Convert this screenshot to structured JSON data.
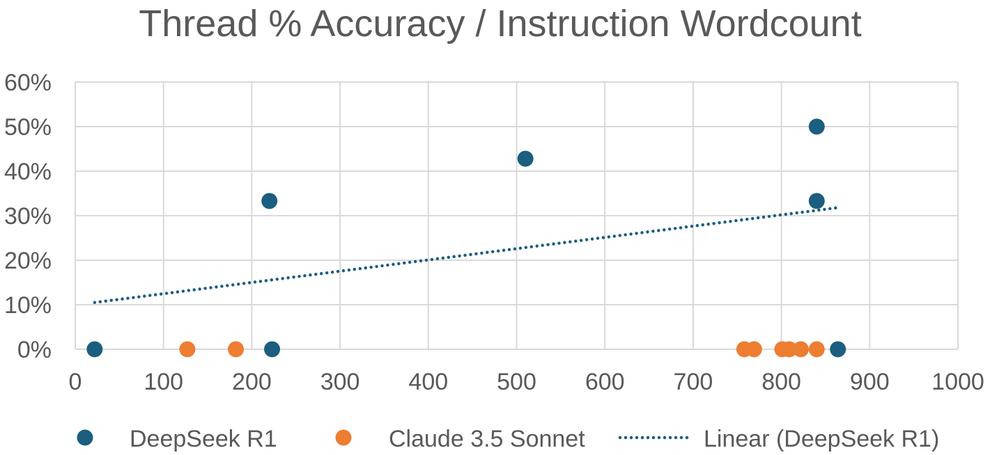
{
  "chart_data": {
    "type": "scatter",
    "title": "Thread % Accuracy / Instruction Wordcount",
    "xlabel": "",
    "ylabel": "",
    "xlim": [
      0,
      1000
    ],
    "ylim": [
      0,
      0.6
    ],
    "x_ticks": [
      0,
      100,
      200,
      300,
      400,
      500,
      600,
      700,
      800,
      900,
      1000
    ],
    "x_tick_labels": [
      "0",
      "100",
      "200",
      "300",
      "400",
      "500",
      "600",
      "700",
      "800",
      "900",
      "1000"
    ],
    "y_ticks": [
      0,
      0.1,
      0.2,
      0.3,
      0.4,
      0.5,
      0.6
    ],
    "y_tick_labels": [
      "0%",
      "10%",
      "20%",
      "30%",
      "40%",
      "50%",
      "60%"
    ],
    "grid": true,
    "legend_position": "bottom",
    "series": [
      {
        "name": "DeepSeek R1",
        "color": "#1b5e7f",
        "marker": "circle",
        "points": [
          {
            "x": 22,
            "y": 0
          },
          {
            "x": 220,
            "y": 0.333
          },
          {
            "x": 223,
            "y": 0
          },
          {
            "x": 510,
            "y": 0.428
          },
          {
            "x": 840,
            "y": 0.5
          },
          {
            "x": 840,
            "y": 0.333
          },
          {
            "x": 864,
            "y": 0
          }
        ]
      },
      {
        "name": "Claude 3.5 Sonnet",
        "color": "#ed7d31",
        "marker": "circle",
        "points": [
          {
            "x": 127,
            "y": 0
          },
          {
            "x": 182,
            "y": 0
          },
          {
            "x": 758,
            "y": 0
          },
          {
            "x": 769,
            "y": 0
          },
          {
            "x": 801,
            "y": 0
          },
          {
            "x": 809,
            "y": 0
          },
          {
            "x": 822,
            "y": 0
          },
          {
            "x": 840,
            "y": 0
          }
        ]
      }
    ],
    "trendline": {
      "name": "Linear (DeepSeek R1)",
      "color": "#1b5e7f",
      "style": "dotted",
      "type": "linear",
      "x_range": [
        22,
        864
      ],
      "y_range": [
        0.105,
        0.318
      ]
    }
  }
}
